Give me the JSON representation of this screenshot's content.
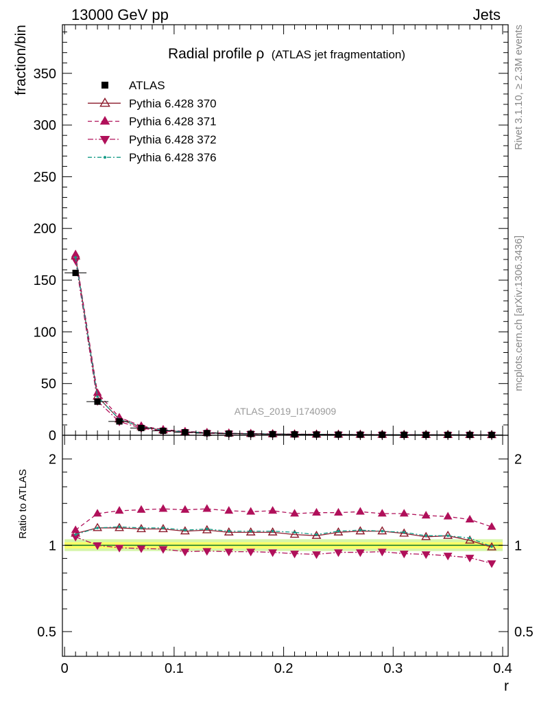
{
  "header": {
    "left": "13000 GeV pp",
    "right": "Jets"
  },
  "side_text": {
    "rivet": "Rivet 3.1.10, ≥ 2.3M events",
    "mcplots": "mcplots.cern.ch [arXiv:1306.3436]"
  },
  "chart_data": {
    "type": "line",
    "title": "Radial profile ρ",
    "title_note": "(ATLAS jet fragmentation)",
    "watermark": "ATLAS_2019_I1740909",
    "xlabel": "r",
    "ylabel_main": "fraction/bin",
    "ylabel_ratio": "Ratio to ATLAS",
    "xlim": [
      -0.002,
      0.405
    ],
    "ylim_main": [
      0,
      397
    ],
    "ylim_ratio": [
      0.41,
      2.42
    ],
    "ratio_log_scale": true,
    "x_ticks": [
      "0",
      "0.1",
      "0.2",
      "0.3",
      "0.4"
    ],
    "x_tick_values": [
      0,
      0.1,
      0.2,
      0.3,
      0.4
    ],
    "y_ticks_main": [
      "0",
      "50",
      "100",
      "150",
      "200",
      "250",
      "300",
      "350"
    ],
    "y_tick_values_main": [
      0,
      50,
      100,
      150,
      200,
      250,
      300,
      350
    ],
    "y_ticks_ratio": [
      "0.5",
      "1",
      "2"
    ],
    "y_tick_values_ratio": [
      0.5,
      1,
      2
    ],
    "legend_position": "top-left",
    "x": [
      0.01,
      0.03,
      0.05,
      0.07,
      0.09,
      0.11,
      0.13,
      0.15,
      0.17,
      0.19,
      0.21,
      0.23,
      0.25,
      0.27,
      0.29,
      0.31,
      0.33,
      0.35,
      0.37,
      0.39
    ],
    "data_series": {
      "name": "ATLAS",
      "values": [
        157,
        32.5,
        13.4,
        7.0,
        4.3,
        2.9,
        2.1,
        1.6,
        1.3,
        1.05,
        0.88,
        0.75,
        0.64,
        0.56,
        0.5,
        0.45,
        0.41,
        0.38,
        0.36,
        0.35
      ],
      "color": "#000000"
    },
    "ratio_band": {
      "inner": [
        0.975,
        1.025
      ],
      "outer": [
        0.955,
        1.05
      ],
      "inner_color": "#ffff66",
      "outer_color": "#d4f5a8"
    },
    "series": [
      {
        "name": "Pythia 6.428 370",
        "color": "#8b1a2b",
        "marker": "triangle-up-open",
        "dash": "",
        "values": [
          173,
          37.5,
          15.4,
          8.0,
          4.9,
          3.25,
          2.35,
          1.8,
          1.45,
          1.17,
          0.96,
          0.81,
          0.71,
          0.63,
          0.56,
          0.5,
          0.45,
          0.415,
          0.38,
          0.345
        ],
        "ratio": [
          1.1,
          1.15,
          1.15,
          1.14,
          1.14,
          1.12,
          1.13,
          1.11,
          1.11,
          1.11,
          1.09,
          1.08,
          1.11,
          1.12,
          1.12,
          1.1,
          1.07,
          1.08,
          1.04,
          0.985
        ]
      },
      {
        "name": "Pythia 6.428 371",
        "color": "#b0105a",
        "marker": "triangle-up-filled",
        "dash": "6,4",
        "values": [
          175,
          41,
          17.2,
          9.0,
          5.5,
          3.65,
          2.65,
          1.98,
          1.6,
          1.29,
          1.07,
          0.92,
          0.79,
          0.69,
          0.61,
          0.55,
          0.5,
          0.45,
          0.41,
          0.38
        ],
        "ratio": [
          1.13,
          1.29,
          1.32,
          1.33,
          1.34,
          1.33,
          1.34,
          1.32,
          1.31,
          1.32,
          1.29,
          1.3,
          1.3,
          1.31,
          1.29,
          1.29,
          1.27,
          1.26,
          1.23,
          1.16
        ]
      },
      {
        "name": "Pythia 6.428 372",
        "color": "#b0105a",
        "marker": "triangle-down-filled",
        "dash": "8,3,2,3",
        "values": [
          169,
          33,
          13.2,
          6.8,
          4.15,
          2.75,
          1.99,
          1.52,
          1.23,
          0.99,
          0.82,
          0.7,
          0.6,
          0.53,
          0.47,
          0.42,
          0.38,
          0.35,
          0.33,
          0.3
        ],
        "ratio": [
          1.07,
          1.0,
          0.98,
          0.975,
          0.97,
          0.95,
          0.955,
          0.95,
          0.95,
          0.945,
          0.935,
          0.93,
          0.945,
          0.945,
          0.95,
          0.935,
          0.93,
          0.92,
          0.905,
          0.865
        ]
      },
      {
        "name": "Pythia 6.428 376",
        "color": "#139b86",
        "marker": "dot",
        "dash": "6,3,2,3",
        "values": [
          172,
          37.3,
          15.5,
          8.1,
          4.95,
          3.28,
          2.38,
          1.8,
          1.45,
          1.18,
          0.98,
          0.82,
          0.72,
          0.63,
          0.56,
          0.5,
          0.46,
          0.42,
          0.385,
          0.35
        ],
        "ratio": [
          1.09,
          1.15,
          1.16,
          1.15,
          1.15,
          1.13,
          1.14,
          1.12,
          1.12,
          1.12,
          1.11,
          1.09,
          1.12,
          1.13,
          1.12,
          1.11,
          1.08,
          1.08,
          1.06,
          0.99
        ]
      }
    ]
  }
}
